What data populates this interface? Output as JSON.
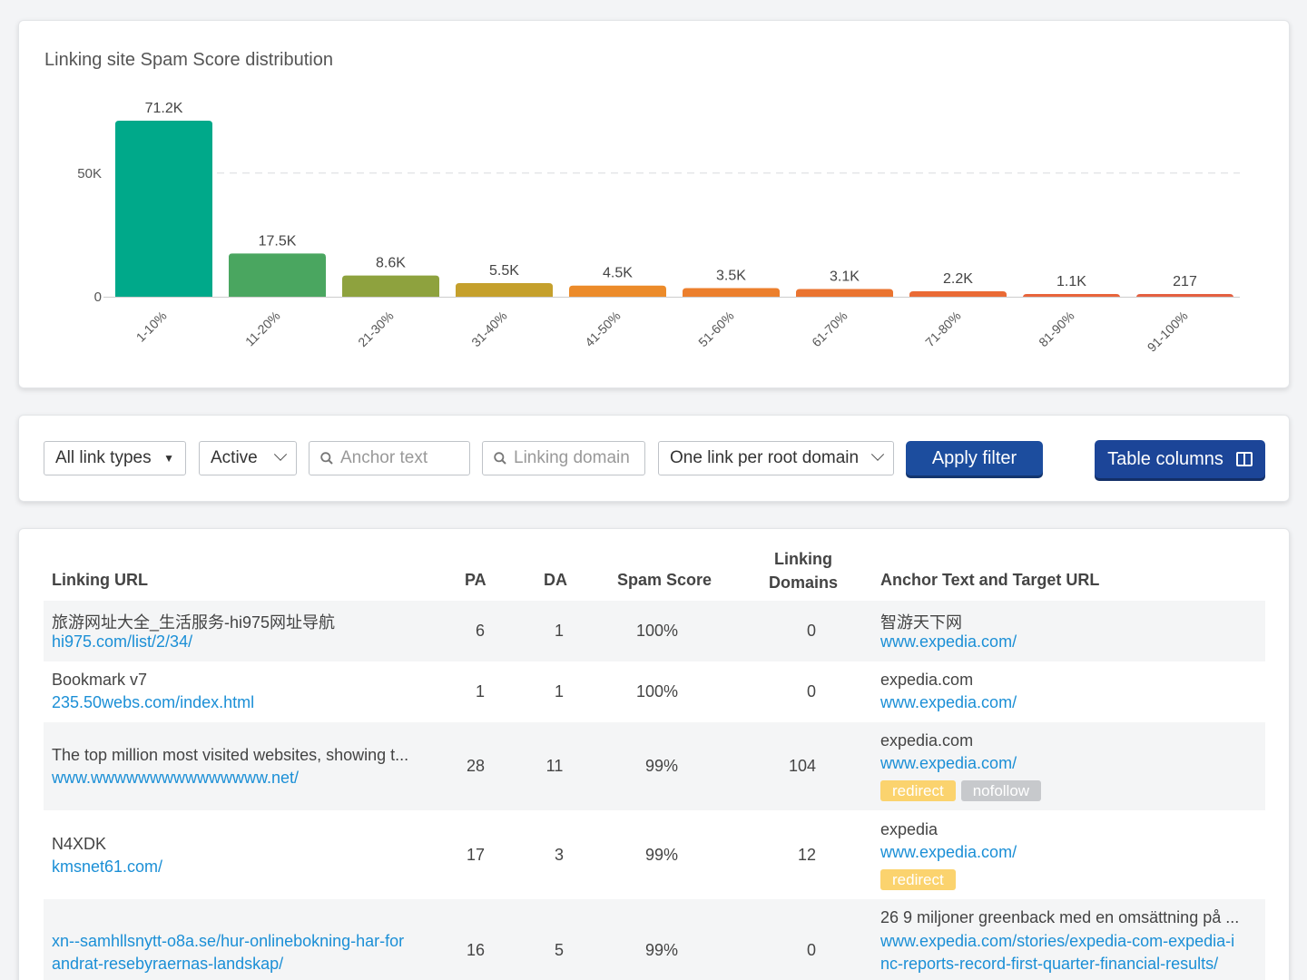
{
  "chart": {
    "title": "Linking site Spam Score distribution"
  },
  "chart_data": {
    "type": "bar",
    "title": "Linking site Spam Score distribution",
    "categories": [
      "1-10%",
      "11-20%",
      "21-30%",
      "31-40%",
      "41-50%",
      "51-60%",
      "61-70%",
      "71-80%",
      "81-90%",
      "91-100%"
    ],
    "values": [
      71200,
      17500,
      8600,
      5500,
      4500,
      3500,
      3100,
      2200,
      1100,
      217
    ],
    "value_labels": [
      "71.2K",
      "17.5K",
      "8.6K",
      "5.5K",
      "4.5K",
      "3.5K",
      "3.1K",
      "2.2K",
      "1.1K",
      "217"
    ],
    "y_ticks": [
      0,
      50000
    ],
    "y_tick_labels": [
      "0",
      "50K"
    ],
    "ylim": [
      0,
      71200
    ],
    "colors": [
      "#00a98a",
      "#4aa660",
      "#8ea23e",
      "#c5a02c",
      "#ec8b2a",
      "#ec7f2d",
      "#ea7430",
      "#ea6a35",
      "#e8643b",
      "#e46041"
    ],
    "grid": "dashed at 50K"
  },
  "filters": {
    "link_types": "All link types",
    "status": "Active",
    "anchor_placeholder": "Anchor text",
    "domain_placeholder": "Linking domain",
    "per_domain": "One link per root domain",
    "apply_label": "Apply filter",
    "columns_label": "Table columns"
  },
  "table": {
    "headers": {
      "linking_url": "Linking URL",
      "pa": "PA",
      "da": "DA",
      "spam_score": "Spam Score",
      "linking_domains_1": "Linking",
      "linking_domains_2": "Domains",
      "anchor": "Anchor Text and Target URL"
    },
    "rows": [
      {
        "title": "旅游网址大全_生活服务-hi975网址导航",
        "url": "hi975.com/list/2/34/",
        "pa": "6",
        "da": "1",
        "spam": "100%",
        "domains": "0",
        "anchor": "智游天下网",
        "target": "www.expedia.com/",
        "badges": []
      },
      {
        "title": "Bookmark v7",
        "url": "235.50webs.com/index.html",
        "pa": "1",
        "da": "1",
        "spam": "100%",
        "domains": "0",
        "anchor": "expedia.com",
        "target": "www.expedia.com/",
        "badges": []
      },
      {
        "title": "The top million most visited websites, showing t...",
        "url": "www.wwwwwwwwwwwwwww.net/",
        "pa": "28",
        "da": "11",
        "spam": "99%",
        "domains": "104",
        "anchor": "expedia.com",
        "target": "www.expedia.com/",
        "badges": [
          "redirect",
          "nofollow"
        ]
      },
      {
        "title": "N4XDK",
        "url": "kmsnet61.com/",
        "pa": "17",
        "da": "3",
        "spam": "99%",
        "domains": "12",
        "anchor": "expedia",
        "target": "www.expedia.com/",
        "badges": [
          "redirect"
        ]
      },
      {
        "title": "",
        "url_line1": "xn--samhllsnytt-o8a.se/hur-onlinebokning-har-for",
        "url_line2": "andrat-resebyraernas-landskap/",
        "pa": "16",
        "da": "5",
        "spam": "99%",
        "domains": "0",
        "anchor": "26 9 miljoner greenback med en omsättning på ...",
        "target_line1": "www.expedia.com/stories/expedia-com-expedia-i",
        "target_line2": "nc-reports-record-first-quarter-financial-results/",
        "badges": []
      }
    ]
  }
}
